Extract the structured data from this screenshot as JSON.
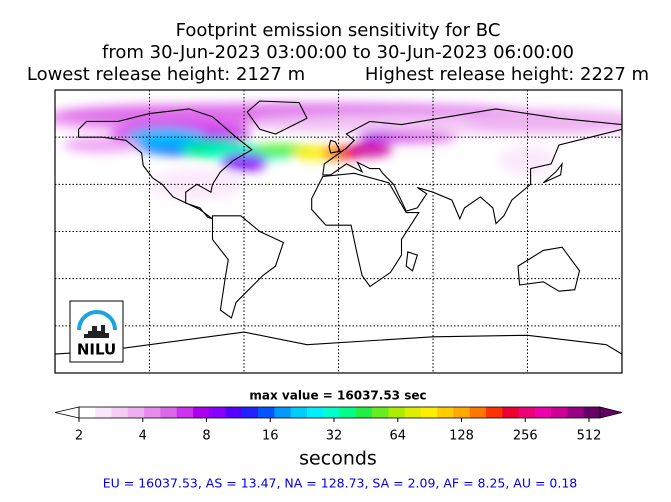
{
  "header": {
    "title_lines": [
      "Footprint emission sensitivity for BC",
      "from 30-Jun-2023 03:00:00 to 30-Jun-2023 06:00:00"
    ],
    "lowest_release": "Lowest release height: 2127 m",
    "highest_release": "Highest release height: 2227 m"
  },
  "logo": {
    "text": "NILU"
  },
  "max_value": "max value = 16037.53 sec",
  "colorbar": {
    "lim": [
      2,
      512
    ],
    "log": true,
    "ticks": [
      2,
      4,
      8,
      16,
      32,
      64,
      128,
      256,
      512
    ],
    "label": "seconds",
    "colors": [
      "#ffffff",
      "#fbe6fb",
      "#f4ccf6",
      "#eeb0f2",
      "#e68cee",
      "#dd66ea",
      "#cc33ee",
      "#aa00ee",
      "#8800ff",
      "#5500ff",
      "#2222ff",
      "#0055ff",
      "#0099ff",
      "#00ccff",
      "#00eeff",
      "#00ffcc",
      "#00ff88",
      "#22ee44",
      "#66ee22",
      "#aaee00",
      "#ddee00",
      "#ffee00",
      "#ffcc00",
      "#ffaa00",
      "#ff7700",
      "#ff3300",
      "#ee0033",
      "#ee0077",
      "#ee00aa",
      "#cc0099",
      "#990088",
      "#660066"
    ]
  },
  "footer": "EU = 16037.53,  AS = 13.47,  NA = 128.73,  SA = 2.09,  AF = 8.25,  AU = 0.18"
}
